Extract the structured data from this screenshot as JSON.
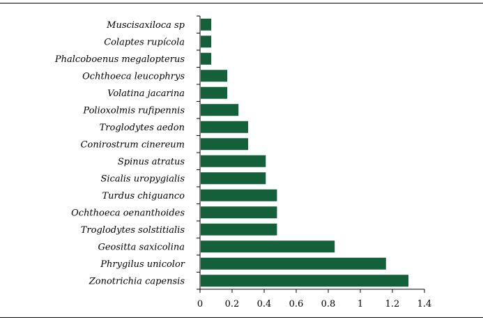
{
  "chart_data": {
    "type": "bar",
    "orientation": "horizontal",
    "categories": [
      "Muscisaxiloca sp",
      "Colaptes rupícola",
      "Phalcoboenus megalopterus",
      "Ochthoeca leucophrys",
      "Volatina jacarina",
      "Polioxolmis rufipennis",
      "Troglodytes aedon",
      "Conirostrum cinereum",
      "Spinus atratus",
      "Sicalis uropygialis",
      "Turdus chiguanco",
      "Ochthoeca oenanthoides",
      "Troglodytes solstitialis",
      "Geositta saxicolina",
      "Phrygilus unicolor",
      "Zonotrichia capensis"
    ],
    "values": [
      0.07,
      0.07,
      0.07,
      0.17,
      0.17,
      0.24,
      0.3,
      0.3,
      0.41,
      0.41,
      0.48,
      0.48,
      0.48,
      0.84,
      1.16,
      1.3
    ],
    "xlim": [
      0,
      1.4
    ],
    "x_ticks": [
      "0",
      "0.2",
      "0.4",
      "0.6",
      "0.8",
      "1",
      "1.2",
      "1.4"
    ],
    "title": "",
    "xlabel": "",
    "ylabel": "",
    "bar_color": "#14603a",
    "grid": false,
    "legend": "none"
  }
}
